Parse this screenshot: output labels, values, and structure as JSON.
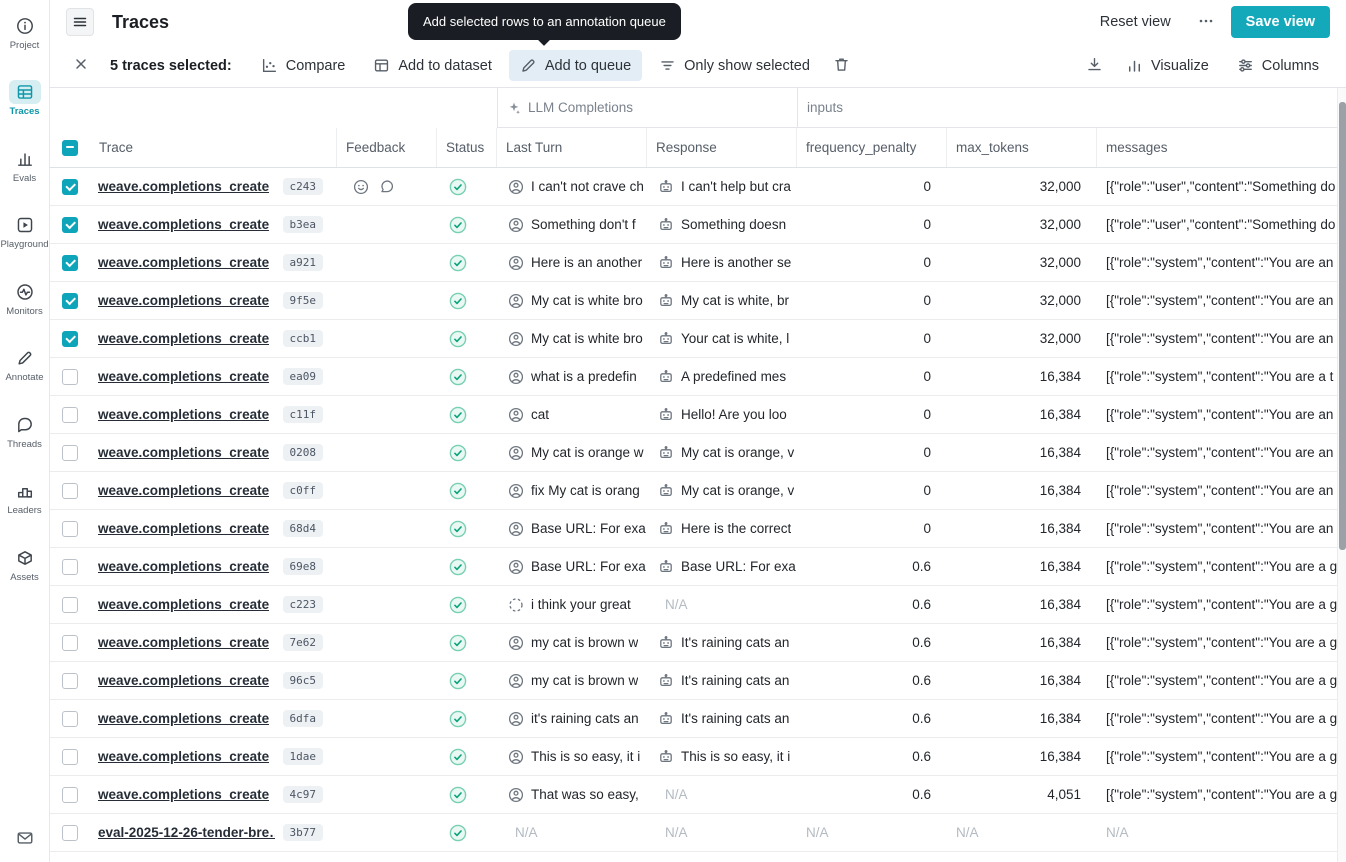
{
  "colors": {
    "accent_teal": "#13a9ba",
    "success_green": "#0aa37c",
    "tooltip_bg": "#1a1e24"
  },
  "app": {
    "title": "Traces",
    "reset_view_label": "Reset view",
    "save_view_label": "Save view"
  },
  "tooltip": {
    "text": "Add selected rows to an annotation queue"
  },
  "sidebar": {
    "items": [
      {
        "id": "project",
        "label": "Project",
        "icon": "info-icon",
        "active": false
      },
      {
        "id": "traces",
        "label": "Traces",
        "icon": "traces-table-icon",
        "active": true
      },
      {
        "id": "evals",
        "label": "Evals",
        "icon": "evals-chart-icon",
        "active": false
      },
      {
        "id": "playground",
        "label": "Playground",
        "icon": "play-icon",
        "active": false
      },
      {
        "id": "monitors",
        "label": "Monitors",
        "icon": "pulse-icon",
        "active": false
      },
      {
        "id": "annotate",
        "label": "Annotate",
        "icon": "pencil-icon",
        "active": false
      },
      {
        "id": "threads",
        "label": "Threads",
        "icon": "chat-bubble-icon",
        "active": false
      },
      {
        "id": "leaders",
        "label": "Leaders",
        "icon": "podium-icon",
        "active": false
      },
      {
        "id": "assets",
        "label": "Assets",
        "icon": "box-icon",
        "active": false
      }
    ],
    "bottom_icon": "mail-icon"
  },
  "selection_toolbar": {
    "close_icon": "close-icon",
    "selected_label": "5 traces selected:",
    "actions": [
      {
        "id": "compare",
        "label": "Compare",
        "icon": "compare-icon",
        "active": false
      },
      {
        "id": "add-to-dataset",
        "label": "Add to dataset",
        "icon": "dataset-icon",
        "active": false
      },
      {
        "id": "add-to-queue",
        "label": "Add to queue",
        "icon": "pencil-icon",
        "active": true
      },
      {
        "id": "only-show-selected",
        "label": "Only show selected",
        "icon": "filter-icon",
        "active": false
      }
    ],
    "delete_icon": "trash-icon",
    "right_actions": [
      {
        "id": "export",
        "label": "",
        "icon": "download-icon"
      },
      {
        "id": "visualize",
        "label": "Visualize",
        "icon": "bar-chart-icon"
      },
      {
        "id": "columns",
        "label": "Columns",
        "icon": "columns-icon"
      }
    ]
  },
  "table": {
    "column_groups": [
      {
        "label": "LLM Completions",
        "icon": "sparkle-icon"
      },
      {
        "label": "inputs"
      }
    ],
    "columns": {
      "trace": "Trace",
      "feedback": "Feedback",
      "status": "Status",
      "last_turn": "Last Turn",
      "response": "Response",
      "frequency_penalty": "frequency_penalty",
      "max_tokens": "max_tokens",
      "messages": "messages"
    },
    "rows": [
      {
        "checked": true,
        "name": "weave.completions_create",
        "hash": "c243",
        "feedback": [
          "emoji-reaction-icon",
          "comment-icon"
        ],
        "status": "success",
        "last_turn_icon": "user",
        "last_turn": "I can't not crave ch",
        "response_icon": "robot",
        "response": "I can't help but cra",
        "frequency_penalty": "0",
        "max_tokens": "32,000",
        "messages": "[{\"role\":\"user\",\"content\":\"Something do"
      },
      {
        "checked": true,
        "name": "weave.completions_create",
        "hash": "b3ea",
        "feedback": [],
        "status": "success",
        "last_turn_icon": "user",
        "last_turn": "Something don't f",
        "response_icon": "robot",
        "response": "Something doesn",
        "frequency_penalty": "0",
        "max_tokens": "32,000",
        "messages": "[{\"role\":\"user\",\"content\":\"Something do"
      },
      {
        "checked": true,
        "name": "weave.completions_create",
        "hash": "a921",
        "feedback": [],
        "status": "success",
        "last_turn_icon": "user",
        "last_turn": "Here is an another",
        "response_icon": "robot",
        "response": "Here is another se",
        "frequency_penalty": "0",
        "max_tokens": "32,000",
        "messages": "[{\"role\":\"system\",\"content\":\"You are an"
      },
      {
        "checked": true,
        "name": "weave.completions_create",
        "hash": "9f5e",
        "feedback": [],
        "status": "success",
        "last_turn_icon": "user",
        "last_turn": "My cat is white bro",
        "response_icon": "robot",
        "response": "My cat is white, br",
        "frequency_penalty": "0",
        "max_tokens": "32,000",
        "messages": "[{\"role\":\"system\",\"content\":\"You are an"
      },
      {
        "checked": true,
        "name": "weave.completions_create",
        "hash": "ccb1",
        "feedback": [],
        "status": "success",
        "last_turn_icon": "user",
        "last_turn": "My cat is white bro",
        "response_icon": "robot",
        "response": "Your cat is white, l",
        "frequency_penalty": "0",
        "max_tokens": "32,000",
        "messages": "[{\"role\":\"system\",\"content\":\"You are an"
      },
      {
        "checked": false,
        "name": "weave.completions_create",
        "hash": "ea09",
        "feedback": [],
        "status": "success",
        "last_turn_icon": "user",
        "last_turn": "what is a predefin",
        "response_icon": "robot",
        "response": "A predefined mes",
        "frequency_penalty": "0",
        "max_tokens": "16,384",
        "messages": "[{\"role\":\"system\",\"content\":\"You are a t"
      },
      {
        "checked": false,
        "name": "weave.completions_create",
        "hash": "c11f",
        "feedback": [],
        "status": "success",
        "last_turn_icon": "user",
        "last_turn": "cat",
        "response_icon": "robot",
        "response": "Hello! Are you loo",
        "frequency_penalty": "0",
        "max_tokens": "16,384",
        "messages": "[{\"role\":\"system\",\"content\":\"You are an"
      },
      {
        "checked": false,
        "name": "weave.completions_create",
        "hash": "0208",
        "feedback": [],
        "status": "success",
        "last_turn_icon": "user",
        "last_turn": "My cat is orange w",
        "response_icon": "robot",
        "response": "My cat is orange, v",
        "frequency_penalty": "0",
        "max_tokens": "16,384",
        "messages": "[{\"role\":\"system\",\"content\":\"You are an"
      },
      {
        "checked": false,
        "name": "weave.completions_create",
        "hash": "c0ff",
        "feedback": [],
        "status": "success",
        "last_turn_icon": "user",
        "last_turn": "fix My cat is orang",
        "response_icon": "robot",
        "response": "My cat is orange, v",
        "frequency_penalty": "0",
        "max_tokens": "16,384",
        "messages": "[{\"role\":\"system\",\"content\":\"You are an"
      },
      {
        "checked": false,
        "name": "weave.completions_create",
        "hash": "68d4",
        "feedback": [],
        "status": "success",
        "last_turn_icon": "user",
        "last_turn": "Base URL: For exa",
        "response_icon": "robot",
        "response": "Here is the correct",
        "frequency_penalty": "0",
        "max_tokens": "16,384",
        "messages": "[{\"role\":\"system\",\"content\":\"You are an"
      },
      {
        "checked": false,
        "name": "weave.completions_create",
        "hash": "69e8",
        "feedback": [],
        "status": "success",
        "last_turn_icon": "user",
        "last_turn": "Base URL: For exa",
        "response_icon": "robot",
        "response": "Base URL: For exa",
        "frequency_penalty": "0.6",
        "max_tokens": "16,384",
        "messages": "[{\"role\":\"system\",\"content\":\"You are a g"
      },
      {
        "checked": false,
        "name": "weave.completions_create",
        "hash": "c223",
        "feedback": [],
        "status": "success",
        "last_turn_icon": "dashed",
        "last_turn": "i think your great",
        "response_icon": null,
        "response": "N/A",
        "frequency_penalty": "0.6",
        "max_tokens": "16,384",
        "messages": "[{\"role\":\"system\",\"content\":\"You are a g"
      },
      {
        "checked": false,
        "name": "weave.completions_create",
        "hash": "7e62",
        "feedback": [],
        "status": "success",
        "last_turn_icon": "user",
        "last_turn": "my cat is brown w",
        "response_icon": "robot",
        "response": "It's raining cats an",
        "frequency_penalty": "0.6",
        "max_tokens": "16,384",
        "messages": "[{\"role\":\"system\",\"content\":\"You are a g"
      },
      {
        "checked": false,
        "name": "weave.completions_create",
        "hash": "96c5",
        "feedback": [],
        "status": "success",
        "last_turn_icon": "user",
        "last_turn": "my cat is brown w",
        "response_icon": "robot",
        "response": "It's raining cats an",
        "frequency_penalty": "0.6",
        "max_tokens": "16,384",
        "messages": "[{\"role\":\"system\",\"content\":\"You are a g"
      },
      {
        "checked": false,
        "name": "weave.completions_create",
        "hash": "6dfa",
        "feedback": [],
        "status": "success",
        "last_turn_icon": "user",
        "last_turn": "it's raining cats an",
        "response_icon": "robot",
        "response": "It's raining cats an",
        "frequency_penalty": "0.6",
        "max_tokens": "16,384",
        "messages": "[{\"role\":\"system\",\"content\":\"You are a g"
      },
      {
        "checked": false,
        "name": "weave.completions_create",
        "hash": "1dae",
        "feedback": [],
        "status": "success",
        "last_turn_icon": "user",
        "last_turn": "This is so easy, it i",
        "response_icon": "robot",
        "response": "This is so easy, it i",
        "frequency_penalty": "0.6",
        "max_tokens": "16,384",
        "messages": "[{\"role\":\"system\",\"content\":\"You are a g"
      },
      {
        "checked": false,
        "name": "weave.completions_create",
        "hash": "4c97",
        "feedback": [],
        "status": "success",
        "last_turn_icon": "user",
        "last_turn": "That was so easy,",
        "response_icon": null,
        "response": "N/A",
        "frequency_penalty": "0.6",
        "max_tokens": "4,051",
        "messages": "[{\"role\":\"system\",\"content\":\"You are a g"
      },
      {
        "checked": false,
        "name": "eval-2025-12-26-tender-bre…",
        "hash": "3b77",
        "feedback": [],
        "status": "success",
        "last_turn_icon": null,
        "last_turn": "N/A",
        "response_icon": null,
        "response": "N/A",
        "frequency_penalty": "N/A",
        "max_tokens": "N/A",
        "messages": "N/A"
      }
    ]
  }
}
